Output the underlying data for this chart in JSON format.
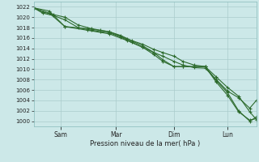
{
  "xlabel": "Pression niveau de la mer( hPa )",
  "bg_color": "#cce8e8",
  "grid_color": "#aacccc",
  "line_color": "#2d6b2d",
  "ylim": [
    999,
    1023
  ],
  "yticks": [
    1000,
    1002,
    1004,
    1006,
    1008,
    1010,
    1012,
    1014,
    1016,
    1018,
    1020,
    1022
  ],
  "xtick_labels": [
    "Sam",
    "Mar",
    "Dim",
    "Lun"
  ],
  "xtick_positions": [
    0.12,
    0.37,
    0.63,
    0.87
  ],
  "series1_x": [
    0.0,
    0.04,
    0.09,
    0.14,
    0.2,
    0.26,
    0.3,
    0.34,
    0.39,
    0.44,
    0.49,
    0.54,
    0.58,
    0.63,
    0.67,
    0.72,
    0.77,
    0.82,
    0.87,
    0.92,
    0.97,
    1.0
  ],
  "series1_y": [
    1021.8,
    1020.8,
    1020.3,
    1019.5,
    1018.0,
    1017.5,
    1017.2,
    1017.0,
    1016.2,
    1015.2,
    1014.2,
    1013.2,
    1012.5,
    1011.5,
    1010.8,
    1010.3,
    1010.2,
    1008.0,
    1005.8,
    1004.5,
    1002.5,
    1004.0
  ],
  "series2_x": [
    0.0,
    0.04,
    0.09,
    0.14,
    0.2,
    0.26,
    0.3,
    0.34,
    0.39,
    0.44,
    0.49,
    0.54,
    0.58,
    0.63,
    0.67,
    0.72,
    0.77,
    0.82,
    0.87,
    0.92,
    0.97,
    1.0
  ],
  "series2_y": [
    1021.8,
    1021.0,
    1020.5,
    1020.0,
    1018.5,
    1017.8,
    1017.5,
    1017.2,
    1016.5,
    1015.5,
    1014.8,
    1013.8,
    1013.2,
    1012.5,
    1011.5,
    1010.8,
    1010.5,
    1008.5,
    1006.5,
    1004.8,
    1001.8,
    1000.3
  ],
  "series3_x": [
    0.0,
    0.07,
    0.14,
    0.24,
    0.34,
    0.42,
    0.49,
    0.54,
    0.58,
    0.63,
    0.67,
    0.72,
    0.77,
    0.82,
    0.87,
    0.92,
    0.97,
    1.0
  ],
  "series3_y": [
    1021.8,
    1021.2,
    1018.2,
    1017.8,
    1017.2,
    1015.8,
    1014.5,
    1013.2,
    1011.8,
    1010.5,
    1010.5,
    1010.5,
    1010.5,
    1007.8,
    1005.5,
    1002.0,
    1000.0,
    1000.8
  ],
  "series4_x": [
    0.0,
    0.07,
    0.14,
    0.24,
    0.34,
    0.42,
    0.49,
    0.54,
    0.58,
    0.63,
    0.67,
    0.72,
    0.77,
    0.82,
    0.87,
    0.92,
    0.97,
    1.0
  ],
  "series4_y": [
    1021.8,
    1020.8,
    1018.2,
    1017.5,
    1016.8,
    1015.5,
    1014.2,
    1012.8,
    1011.5,
    1010.5,
    1010.5,
    1010.5,
    1010.5,
    1007.5,
    1005.0,
    1001.8,
    1000.2,
    1000.5
  ]
}
